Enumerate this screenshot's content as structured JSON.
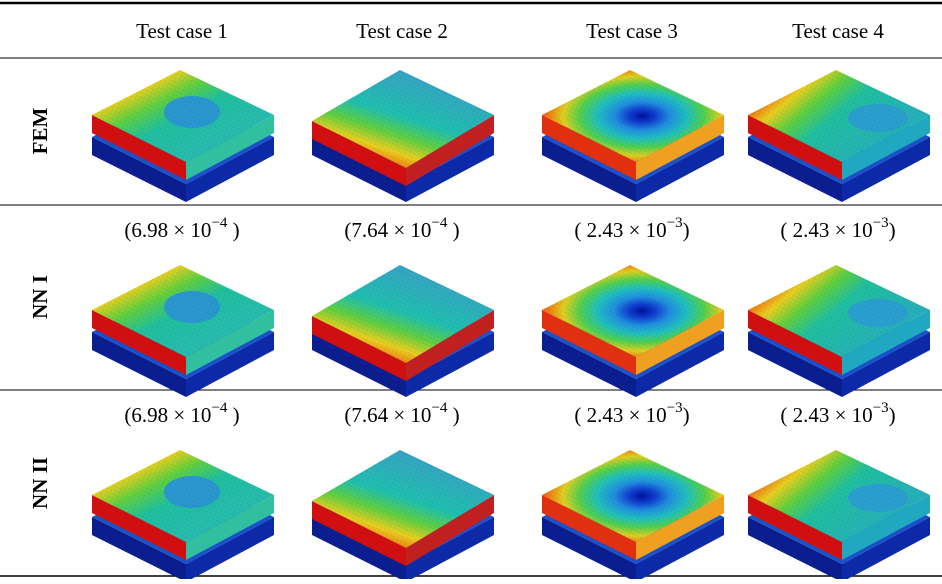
{
  "table": {
    "columns": [
      "Test case 1",
      "Test case 2",
      "Test case 3",
      "Test case 4"
    ],
    "rows": [
      {
        "label": "FEM"
      },
      {
        "label": "NN I",
        "errors": [
          {
            "text": "(6.98 × 10",
            "sup": "−4",
            "close": " )"
          },
          {
            "text": "(7.64 × 10",
            "sup": "−4",
            "close": " )"
          },
          {
            "text": "( 2.43 × 10",
            "sup": "−3",
            "close": ")"
          },
          {
            "text": "( 2.43 × 10",
            "sup": "−3",
            "close": ")"
          }
        ]
      },
      {
        "label": "NN II",
        "errors": [
          {
            "text": "(6.98 × 10",
            "sup": "−4",
            "close": " )"
          },
          {
            "text": "(7.64 × 10",
            "sup": "−4",
            "close": " )"
          },
          {
            "text": "( 2.43 × 10",
            "sup": "−3",
            "close": ")"
          },
          {
            "text": "( 2.43 × 10",
            "sup": "−3",
            "close": ")"
          }
        ]
      }
    ]
  }
}
